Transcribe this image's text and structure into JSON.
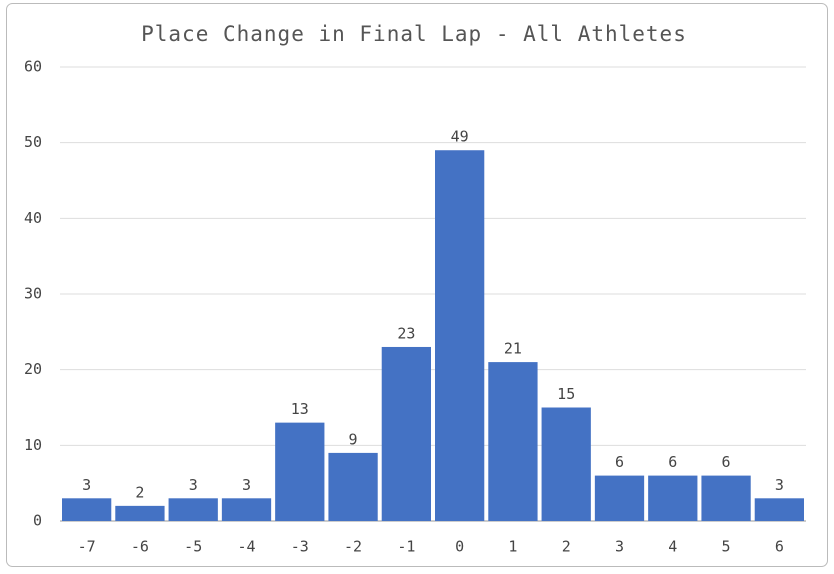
{
  "chart_data": {
    "type": "bar",
    "title": "Place Change in Final Lap - All Athletes",
    "categories": [
      "-7",
      "-6",
      "-5",
      "-4",
      "-3",
      "-2",
      "-1",
      "0",
      "1",
      "2",
      "3",
      "4",
      "5",
      "6"
    ],
    "values": [
      3,
      2,
      3,
      3,
      13,
      9,
      23,
      49,
      21,
      15,
      6,
      6,
      6,
      3
    ],
    "color": "#4472c4",
    "ylim": [
      0,
      60
    ],
    "yticks": [
      0,
      10,
      20,
      30,
      40,
      50,
      60
    ],
    "grid": true
  }
}
